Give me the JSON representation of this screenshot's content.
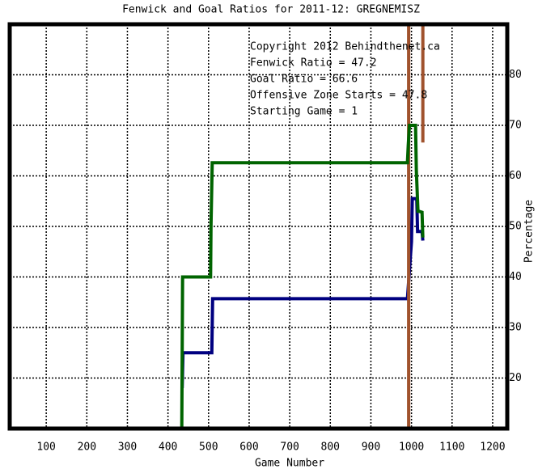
{
  "chart_data": {
    "type": "line",
    "title": "Fenwick and Goal Ratios for 2011-12: GREGNEMISZ",
    "x_label": "Game Number",
    "y_label": "Percentage",
    "xlim": [
      10,
      1236
    ],
    "ylim": [
      10,
      90
    ],
    "xticks": [
      100,
      200,
      300,
      400,
      500,
      600,
      700,
      800,
      900,
      1000,
      1100,
      1200
    ],
    "yticks": [
      20,
      30,
      40,
      50,
      60,
      70,
      80
    ],
    "grid": true,
    "annotations": [
      "Copyright 2012 Behindthenet.ca",
      "Starting Game = 1"
    ],
    "series": [
      {
        "name": "Fenwick Ratio = 47.2",
        "color": "#000080",
        "x": [
          435,
          437,
          508,
          510,
          990,
          1000,
          1002,
          1013,
          1015,
          1026,
          1028
        ],
        "y": [
          18,
          25,
          25,
          35.7,
          35.7,
          47,
          55.5,
          55.5,
          49,
          49,
          47.2
        ]
      },
      {
        "name": "Goal Ratio = 66.6",
        "color": "#a0522d",
        "x": [
          993,
          993,
          null,
          1028,
          1028
        ],
        "y": [
          10,
          90,
          null,
          90,
          66.6
        ]
      },
      {
        "name": "Offensive Zone Starts = 47.8",
        "color": "#006400",
        "x": [
          434,
          436,
          505,
          506,
          509,
          990,
          992,
          995,
          1010,
          1012,
          1016,
          1018,
          1026,
          1028
        ],
        "y": [
          10,
          40,
          40,
          50,
          62.6,
          62.6,
          66,
          70,
          70,
          61,
          53,
          53,
          52.8,
          47.8
        ]
      }
    ]
  }
}
